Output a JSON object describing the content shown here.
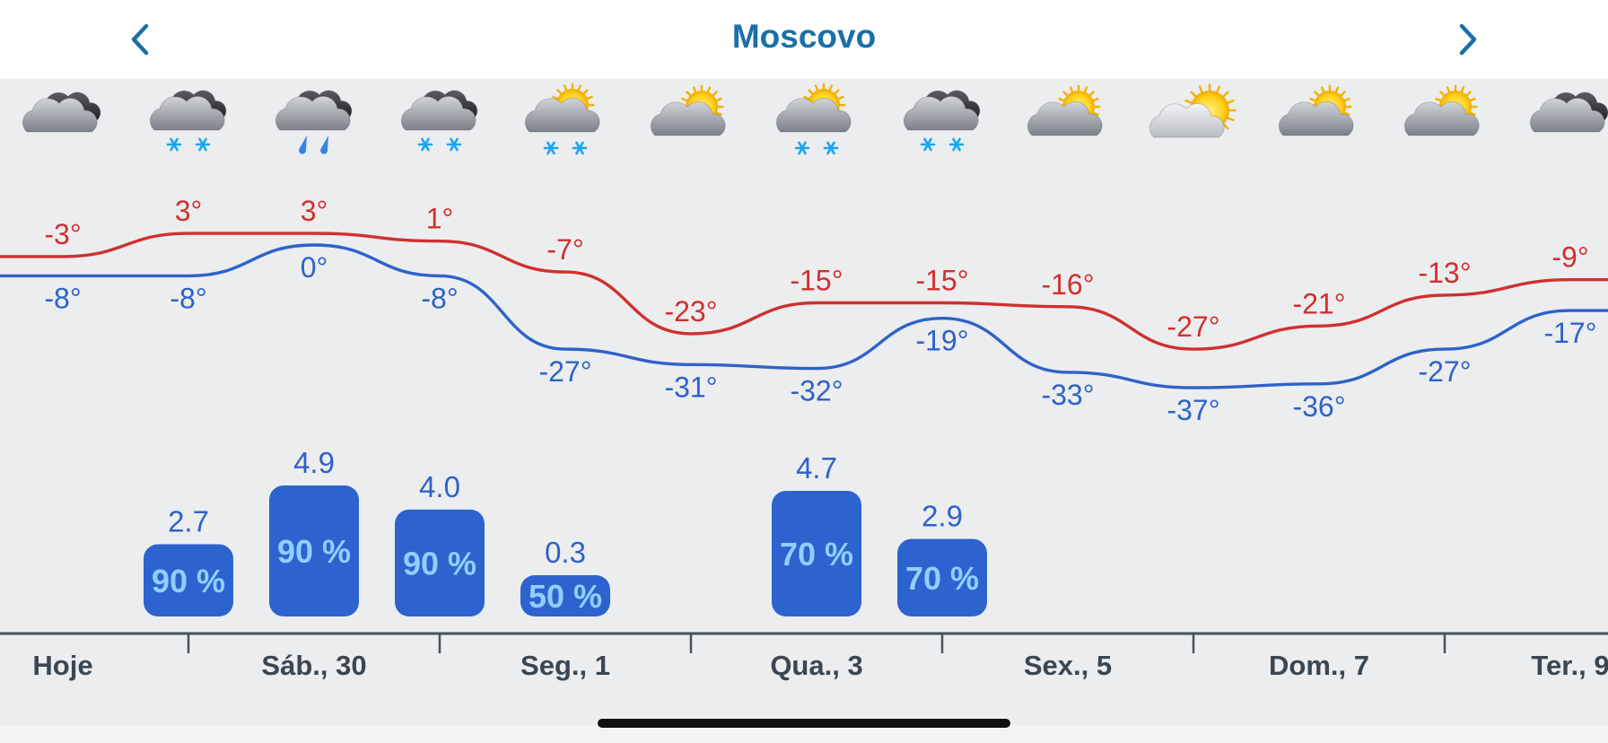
{
  "header": {
    "title": "Moscovo",
    "prev_icon": "chevron-left-icon",
    "next_icon": "chevron-right-icon"
  },
  "colors": {
    "accent": "#1a6fa6",
    "max_temp": "#d0302e",
    "min_temp": "#2e62c9",
    "precip_bar": "#2c63cf",
    "precip_pct": "#8fd0ff",
    "precip_amount": "#2e62c9",
    "axis": "#45525c"
  },
  "forecast": [
    {
      "icon": "cloudy-dark-icon",
      "max": "-3°",
      "min": "-8°",
      "max_v": -3,
      "min_v": -8,
      "precip": null,
      "prob": null,
      "prob_v": null,
      "precip_v": null
    },
    {
      "icon": "snow-cloud-icon",
      "max": "3°",
      "min": "-8°",
      "max_v": 3,
      "min_v": -8,
      "precip": "2.7",
      "prob": "90 %",
      "prob_v": 90,
      "precip_v": 2.7
    },
    {
      "icon": "rain-cloud-icon",
      "max": "3°",
      "min": "0°",
      "max_v": 3,
      "min_v": 0,
      "precip": "4.9",
      "prob": "90 %",
      "prob_v": 90,
      "precip_v": 4.9
    },
    {
      "icon": "snow-cloud-icon",
      "max": "1°",
      "min": "-8°",
      "max_v": 1,
      "min_v": -8,
      "precip": "4.0",
      "prob": "90 %",
      "prob_v": 90,
      "precip_v": 4.0
    },
    {
      "icon": "sun-cloud-snow-icon",
      "max": "-7°",
      "min": "-27°",
      "max_v": -7,
      "min_v": -27,
      "precip": "0.3",
      "prob": "50 %",
      "prob_v": 50,
      "precip_v": 0.3
    },
    {
      "icon": "sun-cloud-icon",
      "max": "-23°",
      "min": "-31°",
      "max_v": -23,
      "min_v": -31,
      "precip": null,
      "prob": null,
      "prob_v": null,
      "precip_v": null
    },
    {
      "icon": "sun-cloud-snow-icon",
      "max": "-15°",
      "min": "-32°",
      "max_v": -15,
      "min_v": -32,
      "precip": "4.7",
      "prob": "70 %",
      "prob_v": 70,
      "precip_v": 4.7
    },
    {
      "icon": "snow-cloud-icon",
      "max": "-15°",
      "min": "-19°",
      "max_v": -15,
      "min_v": -19,
      "precip": "2.9",
      "prob": "70 %",
      "prob_v": 70,
      "precip_v": 2.9
    },
    {
      "icon": "sun-cloud-icon",
      "max": "-16°",
      "min": "-33°",
      "max_v": -16,
      "min_v": -33,
      "precip": null,
      "prob": null,
      "prob_v": null,
      "precip_v": null
    },
    {
      "icon": "sunny-cloud-icon",
      "max": "-27°",
      "min": "-37°",
      "max_v": -27,
      "min_v": -37,
      "precip": null,
      "prob": null,
      "prob_v": null,
      "precip_v": null
    },
    {
      "icon": "sun-cloud-icon",
      "max": "-21°",
      "min": "-36°",
      "max_v": -21,
      "min_v": -36,
      "precip": null,
      "prob": null,
      "prob_v": null,
      "precip_v": null
    },
    {
      "icon": "sun-cloud-icon",
      "max": "-13°",
      "min": "-27°",
      "max_v": -13,
      "min_v": -27,
      "precip": null,
      "prob": null,
      "prob_v": null,
      "precip_v": null
    },
    {
      "icon": "cloudy-dark-icon",
      "max": "-9°",
      "min": "-17°",
      "max_v": -9,
      "min_v": -17,
      "precip": null,
      "prob": null,
      "prob_v": null,
      "precip_v": null
    }
  ],
  "day_labels": [
    "Hoje",
    "Sáb., 30",
    "Seg., 1",
    "Qua., 3",
    "Sex., 5",
    "Dom., 7",
    "Ter., 9"
  ]
}
